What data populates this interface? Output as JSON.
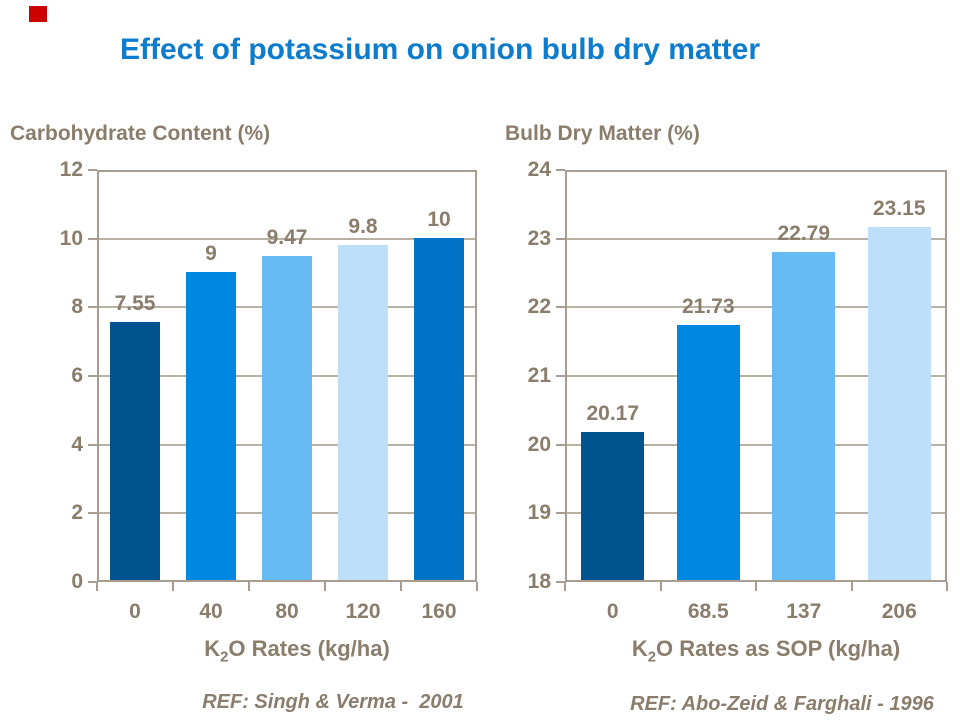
{
  "slide": {
    "title": "Effect of potassium on onion bulb dry matter"
  },
  "marker": {
    "color": "#cc0000"
  },
  "colors": {
    "title_blue": "#0d7ccd",
    "text_brown": "#8a7d6b",
    "axis_line": "#a89d90",
    "gridline": "#bab1a5",
    "background": "#ffffff"
  },
  "chart_data": [
    {
      "type": "bar",
      "title": "Carbohydrate Content (%)",
      "categories": [
        "0",
        "40",
        "80",
        "120",
        "160"
      ],
      "values": [
        7.55,
        9,
        9.47,
        9.8,
        10
      ],
      "value_labels": [
        "7.55",
        "9",
        "9.47",
        "9.8",
        "10"
      ],
      "bar_colors": [
        "#00538f",
        "#0087e2",
        "#66bbf4",
        "#bedff9",
        "#0073c6"
      ],
      "ylim": [
        0,
        12
      ],
      "yticks": [
        12,
        10,
        8,
        6,
        4,
        2,
        0
      ],
      "xlabel": {
        "prefix": "K",
        "sub": "2",
        "rest": "O Rates (kg/ha)"
      },
      "grid": true,
      "legend": false,
      "ref": "REF: Singh & Verma -  2001"
    },
    {
      "type": "bar",
      "title": "Bulb Dry Matter (%)",
      "categories": [
        "0",
        "68.5",
        "137",
        "206"
      ],
      "values": [
        20.17,
        21.73,
        22.79,
        23.15
      ],
      "value_labels": [
        "20.17",
        "21.73",
        "22.79",
        "23.15"
      ],
      "bar_colors": [
        "#00538f",
        "#0087e2",
        "#66bbf4",
        "#bedff9"
      ],
      "ylim": [
        18,
        24
      ],
      "yticks": [
        24,
        23,
        22,
        21,
        20,
        19,
        18
      ],
      "xlabel": {
        "prefix": "K",
        "sub": "2",
        "rest": "O Rates as SOP (kg/ha)"
      },
      "grid": true,
      "legend": false,
      "ref": "REF: Abo-Zeid & Farghali - 1996"
    }
  ]
}
